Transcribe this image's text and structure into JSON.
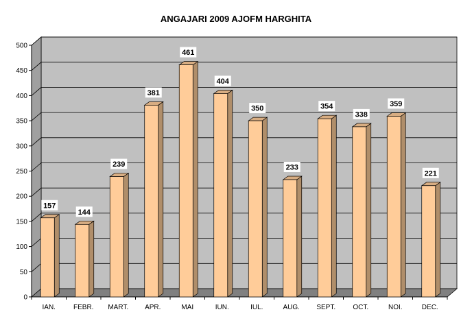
{
  "chart_data": {
    "type": "bar",
    "title": "ANGAJARI 2009  AJOFM HARGHITA",
    "categories": [
      "IAN.",
      "FEBR.",
      "MART.",
      "APR.",
      "MAI",
      "IUN.",
      "IUL.",
      "AUG.",
      "SEPT.",
      "OCT.",
      "NOI.",
      "DEC."
    ],
    "values": [
      157,
      144,
      239,
      381,
      461,
      404,
      350,
      233,
      354,
      338,
      359,
      221
    ],
    "ylim": [
      0,
      500
    ],
    "yticks": [
      0,
      50,
      100,
      150,
      200,
      250,
      300,
      350,
      400,
      450,
      500
    ],
    "grid": true,
    "legend": "none",
    "colors": {
      "bar_front": "#FFCC99",
      "bar_side": "#B08E6A",
      "bar_top": "#D8AD82",
      "plot_wall": "#C0C0C0",
      "plot_floor": "#808080",
      "gridline": "#000000",
      "label_box": "#FFFFFF"
    }
  }
}
